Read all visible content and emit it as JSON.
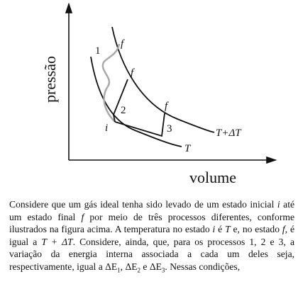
{
  "figure": {
    "y_axis_label": "pressão",
    "x_axis_label": "volume",
    "labels": {
      "process_1": "1",
      "process_2": "2",
      "process_3": "3",
      "final_1": "f",
      "final_2": "f",
      "final_3": "f",
      "initial": "i",
      "hot_isotherm": "T+ΔT",
      "cold_isotherm": "T"
    }
  },
  "paragraph": [
    "Considere que um gás ideal tenha sido levado de um estado inicial ",
    "i",
    " até um estado final ",
    "f",
    " por meio de três processos diferentes, conforme ilustrados na figura acima. A temperatura no estado ",
    "i",
    " é ",
    "T",
    " e, no estado ",
    "f",
    ", é igual a ",
    "T + ΔT",
    ". Considere, ainda, que, para os processos  1, 2 e 3, a variação da energia interna associada a cada um deles seja, respectivamente, igual a ΔE",
    "1",
    ", ΔE",
    "2",
    " e ΔE",
    "3",
    ". Nessas condições,"
  ]
}
